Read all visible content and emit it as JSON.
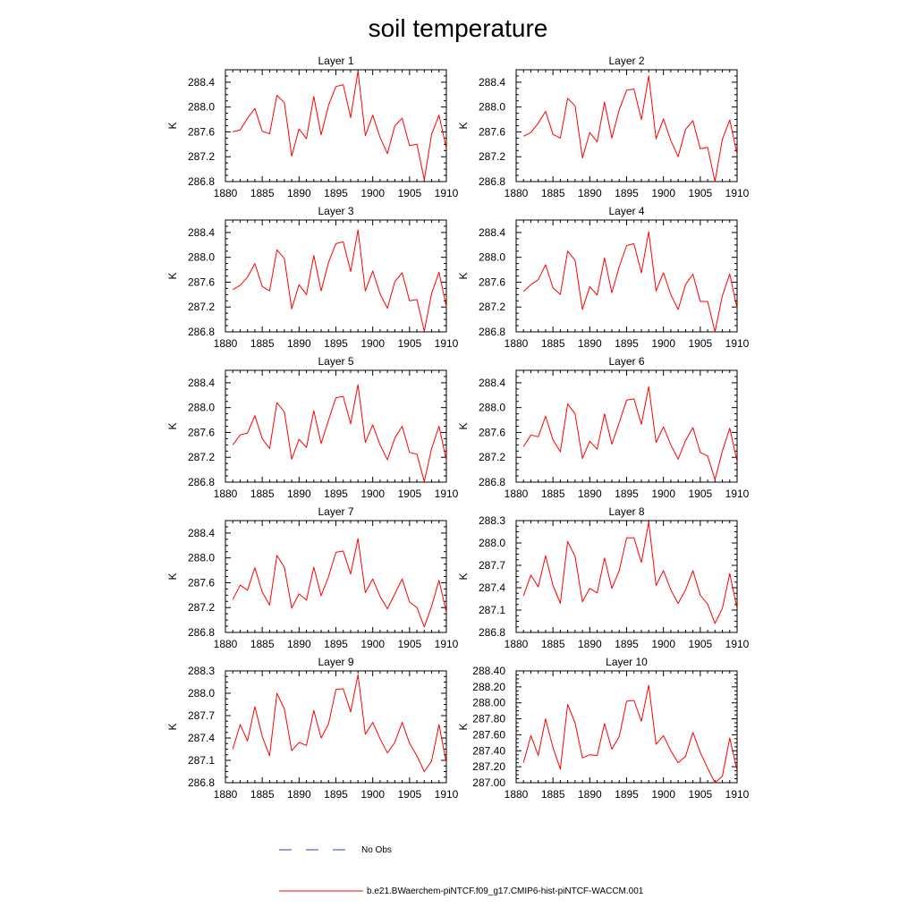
{
  "title": "soil temperature",
  "legend": {
    "obs_label": "No Obs",
    "obs_color": "#2a3fbf",
    "model_label": "b.e21.BWaerchem-piNTCF.f09_g17.CMIP6-hist-piNTCF-WACCM.001",
    "model_color": "#ff0000"
  },
  "chart_data": [
    {
      "type": "line",
      "title": "Layer 1",
      "ylabel": "K",
      "xlim": [
        1880,
        1910
      ],
      "ylim": [
        286.8,
        288.6
      ],
      "xticks": [
        1880,
        1885,
        1890,
        1895,
        1900,
        1905,
        1910
      ],
      "yticks": [
        "286.8",
        "287.2",
        "287.6",
        "288.0",
        "288.4"
      ],
      "x": [
        1881,
        1882,
        1883,
        1884,
        1885,
        1886,
        1887,
        1888,
        1889,
        1890,
        1891,
        1892,
        1893,
        1894,
        1895,
        1896,
        1897,
        1898,
        1899,
        1900,
        1901,
        1902,
        1903,
        1904,
        1905,
        1906,
        1907,
        1908,
        1909,
        1910
      ],
      "values": [
        287.6,
        287.63,
        287.82,
        287.98,
        287.61,
        287.57,
        288.19,
        288.07,
        287.21,
        287.65,
        287.49,
        288.17,
        287.55,
        288.03,
        288.33,
        288.36,
        287.83,
        288.58,
        287.54,
        287.87,
        287.51,
        287.25,
        287.7,
        287.82,
        287.38,
        287.4,
        286.83,
        287.56,
        287.87,
        287.33
      ],
      "series": [
        {
          "name": "b.e21.BWaerchem-piNTCF.f09_g17.CMIP6-hist-piNTCF-WACCM.001",
          "color": "#ff0000"
        }
      ]
    },
    {
      "type": "line",
      "title": "Layer 2",
      "ylabel": "K",
      "xlim": [
        1880,
        1910
      ],
      "ylim": [
        286.8,
        288.6
      ],
      "xticks": [
        1880,
        1885,
        1890,
        1895,
        1900,
        1905,
        1910
      ],
      "yticks": [
        "286.8",
        "287.2",
        "287.6",
        "288.0",
        "288.4"
      ],
      "x": [
        1881,
        1882,
        1883,
        1884,
        1885,
        1886,
        1887,
        1888,
        1889,
        1890,
        1891,
        1892,
        1893,
        1894,
        1895,
        1896,
        1897,
        1898,
        1899,
        1900,
        1901,
        1902,
        1903,
        1904,
        1905,
        1906,
        1907,
        1908,
        1909,
        1910
      ],
      "values": [
        287.53,
        287.59,
        287.74,
        287.93,
        287.56,
        287.5,
        288.14,
        288.02,
        287.18,
        287.59,
        287.44,
        288.08,
        287.5,
        287.96,
        288.27,
        288.29,
        287.8,
        288.5,
        287.49,
        287.81,
        287.46,
        287.2,
        287.64,
        287.78,
        287.33,
        287.35,
        286.8,
        287.48,
        287.79,
        287.24
      ],
      "series": [
        {
          "name": "b.e21.BWaerchem-piNTCF.f09_g17.CMIP6-hist-piNTCF-WACCM.001",
          "color": "#ff0000"
        }
      ]
    },
    {
      "type": "line",
      "title": "Layer 3",
      "ylabel": "K",
      "xlim": [
        1880,
        1910
      ],
      "ylim": [
        286.8,
        288.6
      ],
      "xticks": [
        1880,
        1885,
        1890,
        1895,
        1900,
        1905,
        1910
      ],
      "yticks": [
        "286.8",
        "287.2",
        "287.6",
        "288.0",
        "288.4"
      ],
      "x": [
        1881,
        1882,
        1883,
        1884,
        1885,
        1886,
        1887,
        1888,
        1889,
        1890,
        1891,
        1892,
        1893,
        1894,
        1895,
        1896,
        1897,
        1898,
        1899,
        1900,
        1901,
        1902,
        1903,
        1904,
        1905,
        1906,
        1907,
        1908,
        1909,
        1910
      ],
      "values": [
        287.48,
        287.55,
        287.68,
        287.9,
        287.53,
        287.46,
        288.12,
        287.98,
        287.17,
        287.56,
        287.4,
        288.03,
        287.46,
        287.92,
        288.22,
        288.25,
        287.77,
        288.44,
        287.46,
        287.78,
        287.41,
        287.18,
        287.61,
        287.75,
        287.3,
        287.32,
        286.81,
        287.42,
        287.76,
        287.2
      ],
      "series": [
        {
          "name": "b.e21.BWaerchem-piNTCF.f09_g17.CMIP6-hist-piNTCF-WACCM.001",
          "color": "#ff0000"
        }
      ]
    },
    {
      "type": "line",
      "title": "Layer 4",
      "ylabel": "K",
      "xlim": [
        1880,
        1910
      ],
      "ylim": [
        286.8,
        288.6
      ],
      "xticks": [
        1880,
        1885,
        1890,
        1895,
        1900,
        1905,
        1910
      ],
      "yticks": [
        "286.8",
        "287.2",
        "287.6",
        "288.0",
        "288.4"
      ],
      "x": [
        1881,
        1882,
        1883,
        1884,
        1885,
        1886,
        1887,
        1888,
        1889,
        1890,
        1891,
        1892,
        1893,
        1894,
        1895,
        1896,
        1897,
        1898,
        1899,
        1900,
        1901,
        1902,
        1903,
        1904,
        1905,
        1906,
        1907,
        1908,
        1909,
        1910
      ],
      "values": [
        287.45,
        287.56,
        287.64,
        287.88,
        287.51,
        287.4,
        288.1,
        287.95,
        287.16,
        287.53,
        287.39,
        287.99,
        287.43,
        287.85,
        288.19,
        288.22,
        287.75,
        288.41,
        287.46,
        287.75,
        287.4,
        287.16,
        287.56,
        287.73,
        287.29,
        287.29,
        286.8,
        287.38,
        287.73,
        287.18
      ],
      "series": [
        {
          "name": "b.e21.BWaerchem-piNTCF.f09_g17.CMIP6-hist-piNTCF-WACCM.001",
          "color": "#ff0000"
        }
      ]
    },
    {
      "type": "line",
      "title": "Layer 5",
      "ylabel": "K",
      "xlim": [
        1880,
        1910
      ],
      "ylim": [
        286.8,
        288.6
      ],
      "xticks": [
        1880,
        1885,
        1890,
        1895,
        1900,
        1905,
        1910
      ],
      "yticks": [
        "286.8",
        "287.2",
        "287.6",
        "288.0",
        "288.4"
      ],
      "x": [
        1881,
        1882,
        1883,
        1884,
        1885,
        1886,
        1887,
        1888,
        1889,
        1890,
        1891,
        1892,
        1893,
        1894,
        1895,
        1896,
        1897,
        1898,
        1899,
        1900,
        1901,
        1902,
        1903,
        1904,
        1905,
        1906,
        1907,
        1908,
        1909,
        1910
      ],
      "values": [
        287.4,
        287.56,
        287.59,
        287.87,
        287.5,
        287.34,
        288.08,
        287.93,
        287.17,
        287.49,
        287.36,
        287.95,
        287.42,
        287.8,
        288.16,
        288.18,
        287.74,
        288.37,
        287.44,
        287.72,
        287.4,
        287.16,
        287.51,
        287.7,
        287.28,
        287.25,
        286.81,
        287.34,
        287.7,
        287.15
      ],
      "series": [
        {
          "name": "b.e21.BWaerchem-piNTCF.f09_g17.CMIP6-hist-piNTCF-WACCM.001",
          "color": "#ff0000"
        }
      ]
    },
    {
      "type": "line",
      "title": "Layer 6",
      "ylabel": "K",
      "xlim": [
        1880,
        1910
      ],
      "ylim": [
        286.8,
        288.6
      ],
      "xticks": [
        1880,
        1885,
        1890,
        1895,
        1900,
        1905,
        1910
      ],
      "yticks": [
        "286.8",
        "287.2",
        "287.6",
        "288.0",
        "288.4"
      ],
      "x": [
        1881,
        1882,
        1883,
        1884,
        1885,
        1886,
        1887,
        1888,
        1889,
        1890,
        1891,
        1892,
        1893,
        1894,
        1895,
        1896,
        1897,
        1898,
        1899,
        1900,
        1901,
        1902,
        1903,
        1904,
        1905,
        1906,
        1907,
        1908,
        1909,
        1910
      ],
      "values": [
        287.37,
        287.56,
        287.53,
        287.86,
        287.48,
        287.29,
        288.06,
        287.9,
        287.18,
        287.46,
        287.33,
        287.9,
        287.41,
        287.76,
        288.12,
        288.14,
        287.73,
        288.34,
        287.44,
        287.69,
        287.4,
        287.17,
        287.47,
        287.68,
        287.28,
        287.22,
        286.84,
        287.3,
        287.67,
        287.13
      ],
      "series": [
        {
          "name": "b.e21.BWaerchem-piNTCF.f09_g17.CMIP6-hist-piNTCF-WACCM.001",
          "color": "#ff0000"
        }
      ]
    },
    {
      "type": "line",
      "title": "Layer 7",
      "ylabel": "K",
      "xlim": [
        1880,
        1910
      ],
      "ylim": [
        286.8,
        288.6
      ],
      "xticks": [
        1880,
        1885,
        1890,
        1895,
        1900,
        1905,
        1910
      ],
      "yticks": [
        "286.8",
        "287.2",
        "287.6",
        "288.0",
        "288.4"
      ],
      "x": [
        1881,
        1882,
        1883,
        1884,
        1885,
        1886,
        1887,
        1888,
        1889,
        1890,
        1891,
        1892,
        1893,
        1894,
        1895,
        1896,
        1897,
        1898,
        1899,
        1900,
        1901,
        1902,
        1903,
        1904,
        1905,
        1906,
        1907,
        1908,
        1909,
        1910
      ],
      "values": [
        287.33,
        287.56,
        287.48,
        287.84,
        287.45,
        287.24,
        288.04,
        287.85,
        287.19,
        287.42,
        287.32,
        287.85,
        287.39,
        287.7,
        288.09,
        288.11,
        287.74,
        288.31,
        287.44,
        287.66,
        287.38,
        287.18,
        287.42,
        287.66,
        287.29,
        287.2,
        286.89,
        287.22,
        287.64,
        287.12
      ],
      "series": [
        {
          "name": "b.e21.BWaerchem-piNTCF.f09_g17.CMIP6-hist-piNTCF-WACCM.001",
          "color": "#ff0000"
        }
      ]
    },
    {
      "type": "line",
      "title": "Layer 8",
      "ylabel": "K",
      "xlim": [
        1880,
        1910
      ],
      "ylim": [
        286.8,
        288.3
      ],
      "xticks": [
        1880,
        1885,
        1890,
        1895,
        1900,
        1905,
        1910
      ],
      "yticks": [
        "286.8",
        "287.1",
        "287.4",
        "287.7",
        "288.0",
        "288.3"
      ],
      "x": [
        1881,
        1882,
        1883,
        1884,
        1885,
        1886,
        1887,
        1888,
        1889,
        1890,
        1891,
        1892,
        1893,
        1894,
        1895,
        1896,
        1897,
        1898,
        1899,
        1900,
        1901,
        1902,
        1903,
        1904,
        1905,
        1906,
        1907,
        1908,
        1909,
        1910
      ],
      "values": [
        287.29,
        287.57,
        287.41,
        287.83,
        287.43,
        287.19,
        288.02,
        287.82,
        287.21,
        287.39,
        287.33,
        287.8,
        287.39,
        287.63,
        288.07,
        288.07,
        287.74,
        288.28,
        287.43,
        287.63,
        287.37,
        287.19,
        287.37,
        287.63,
        287.3,
        287.18,
        286.92,
        287.12,
        287.59,
        287.12
      ],
      "series": [
        {
          "name": "b.e21.BWaerchem-piNTCF.f09_g17.CMIP6-hist-piNTCF-WACCM.001",
          "color": "#ff0000"
        }
      ]
    },
    {
      "type": "line",
      "title": "Layer 9",
      "ylabel": "K",
      "xlim": [
        1880,
        1910
      ],
      "ylim": [
        286.8,
        288.3
      ],
      "xticks": [
        1880,
        1885,
        1890,
        1895,
        1900,
        1905,
        1910
      ],
      "yticks": [
        "286.8",
        "287.1",
        "287.4",
        "287.7",
        "288.0",
        "288.3"
      ],
      "x": [
        1881,
        1882,
        1883,
        1884,
        1885,
        1886,
        1887,
        1888,
        1889,
        1890,
        1891,
        1892,
        1893,
        1894,
        1895,
        1896,
        1897,
        1898,
        1899,
        1900,
        1901,
        1902,
        1903,
        1904,
        1905,
        1906,
        1907,
        1908,
        1909,
        1910
      ],
      "values": [
        287.25,
        287.58,
        287.36,
        287.82,
        287.42,
        287.16,
        288.0,
        287.79,
        287.23,
        287.34,
        287.3,
        287.77,
        287.4,
        287.59,
        288.05,
        288.06,
        287.75,
        288.25,
        287.45,
        287.61,
        287.39,
        287.2,
        287.34,
        287.61,
        287.33,
        287.16,
        286.95,
        287.09,
        287.58,
        287.06
      ],
      "series": [
        {
          "name": "b.e21.BWaerchem-piNTCF.f09_g17.CMIP6-hist-piNTCF-WACCM.001",
          "color": "#ff0000"
        }
      ]
    },
    {
      "type": "line",
      "title": "Layer 10",
      "ylabel": "K",
      "xlim": [
        1880,
        1910
      ],
      "ylim": [
        287.0,
        288.4
      ],
      "xticks": [
        1880,
        1885,
        1890,
        1895,
        1900,
        1905,
        1910
      ],
      "yticks": [
        "287.00",
        "287.20",
        "287.40",
        "287.60",
        "287.80",
        "288.00",
        "288.20",
        "288.40"
      ],
      "x": [
        1881,
        1882,
        1883,
        1884,
        1885,
        1886,
        1887,
        1888,
        1889,
        1890,
        1891,
        1892,
        1893,
        1894,
        1895,
        1896,
        1897,
        1898,
        1899,
        1900,
        1901,
        1902,
        1903,
        1904,
        1905,
        1906,
        1907,
        1908,
        1909,
        1910
      ],
      "values": [
        287.25,
        287.59,
        287.34,
        287.8,
        287.44,
        287.17,
        287.98,
        287.75,
        287.31,
        287.35,
        287.34,
        287.74,
        287.42,
        287.58,
        288.02,
        288.03,
        287.77,
        288.22,
        287.48,
        287.59,
        287.4,
        287.25,
        287.33,
        287.63,
        287.38,
        287.18,
        287.0,
        287.08,
        287.56,
        287.15
      ],
      "series": [
        {
          "name": "b.e21.BWaerchem-piNTCF.f09_g17.CMIP6-hist-piNTCF-WACCM.001",
          "color": "#ff0000"
        }
      ]
    }
  ]
}
